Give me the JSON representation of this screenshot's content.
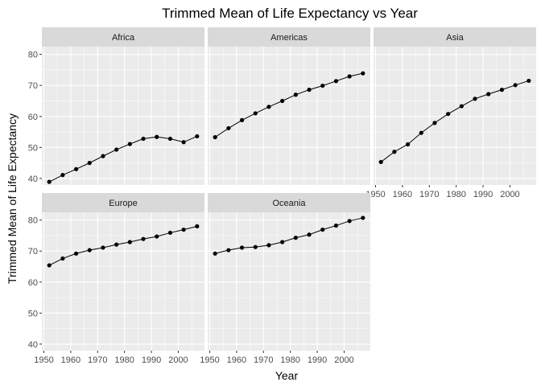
{
  "chart_data": {
    "type": "line",
    "title": "Trimmed Mean of Life Expectancy vs Year",
    "xlabel": "Year",
    "ylabel": "Trimmed Mean of Life Expectancy",
    "xlim": [
      1949.25,
      2009.75
    ],
    "ylim": [
      37.9,
      82.5
    ],
    "x_ticks": [
      1950,
      1960,
      1970,
      1980,
      1990,
      2000
    ],
    "y_ticks": [
      40,
      50,
      60,
      70,
      80
    ],
    "grid": true,
    "x": [
      1952,
      1957,
      1962,
      1967,
      1972,
      1977,
      1982,
      1987,
      1992,
      1997,
      2002,
      2007
    ],
    "panels": [
      {
        "name": "Africa",
        "values": [
          38.9,
          41.1,
          43.0,
          45.0,
          47.2,
          49.3,
          51.1,
          52.8,
          53.4,
          52.8,
          51.7,
          53.6
        ]
      },
      {
        "name": "Americas",
        "values": [
          53.3,
          56.2,
          58.8,
          61.0,
          63.1,
          65.0,
          67.0,
          68.6,
          69.9,
          71.4,
          72.9,
          73.9
        ]
      },
      {
        "name": "Asia",
        "values": [
          45.3,
          48.6,
          51.0,
          54.7,
          57.9,
          60.8,
          63.3,
          65.7,
          67.2,
          68.6,
          70.1,
          71.5
        ]
      },
      {
        "name": "Europe",
        "values": [
          65.4,
          67.6,
          69.2,
          70.3,
          71.1,
          72.1,
          72.9,
          73.9,
          74.7,
          75.9,
          76.9,
          78.0
        ]
      },
      {
        "name": "Oceania",
        "values": [
          69.2,
          70.3,
          71.1,
          71.3,
          71.9,
          72.9,
          74.3,
          75.3,
          76.9,
          78.2,
          79.7,
          80.7
        ]
      }
    ]
  },
  "colors": {
    "panel_bg": "#ebebeb",
    "strip_bg": "#d9d9d9",
    "grid_major": "#ffffff",
    "line": "#000000"
  }
}
